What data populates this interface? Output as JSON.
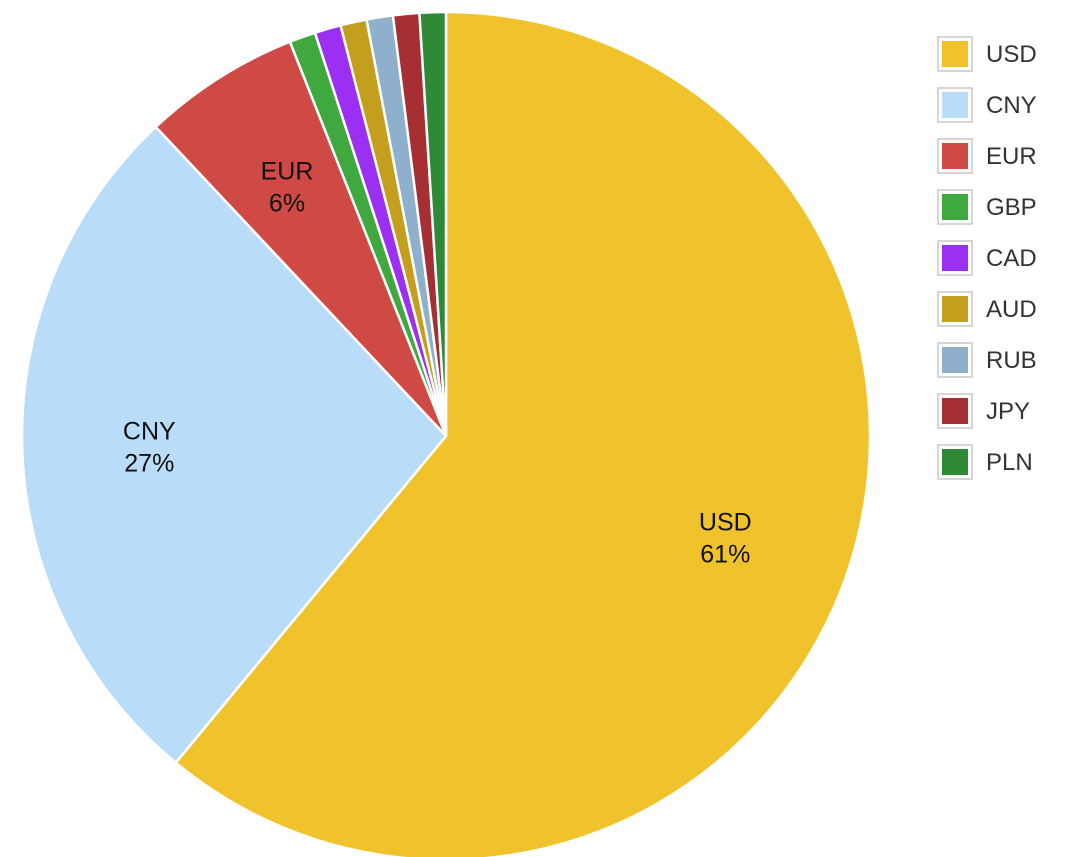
{
  "chart_data": {
    "type": "pie",
    "legend_position": "right",
    "slices": [
      {
        "label": "USD",
        "value": 61,
        "display": "61%",
        "color": "#F0C22B"
      },
      {
        "label": "CNY",
        "value": 27,
        "display": "27%",
        "color": "#B9DDF9"
      },
      {
        "label": "EUR",
        "value": 6,
        "display": "6%",
        "color": "#D04A45"
      },
      {
        "label": "GBP",
        "value": 1,
        "color": "#3FA83F"
      },
      {
        "label": "CAD",
        "value": 1,
        "color": "#9B30F2"
      },
      {
        "label": "AUD",
        "value": 1,
        "color": "#C49F1E"
      },
      {
        "label": "RUB",
        "value": 1,
        "color": "#8FB0CC"
      },
      {
        "label": "JPY",
        "value": 1,
        "color": "#A62F33"
      },
      {
        "label": "PLN",
        "value": 1,
        "color": "#2F8A38"
      }
    ]
  }
}
